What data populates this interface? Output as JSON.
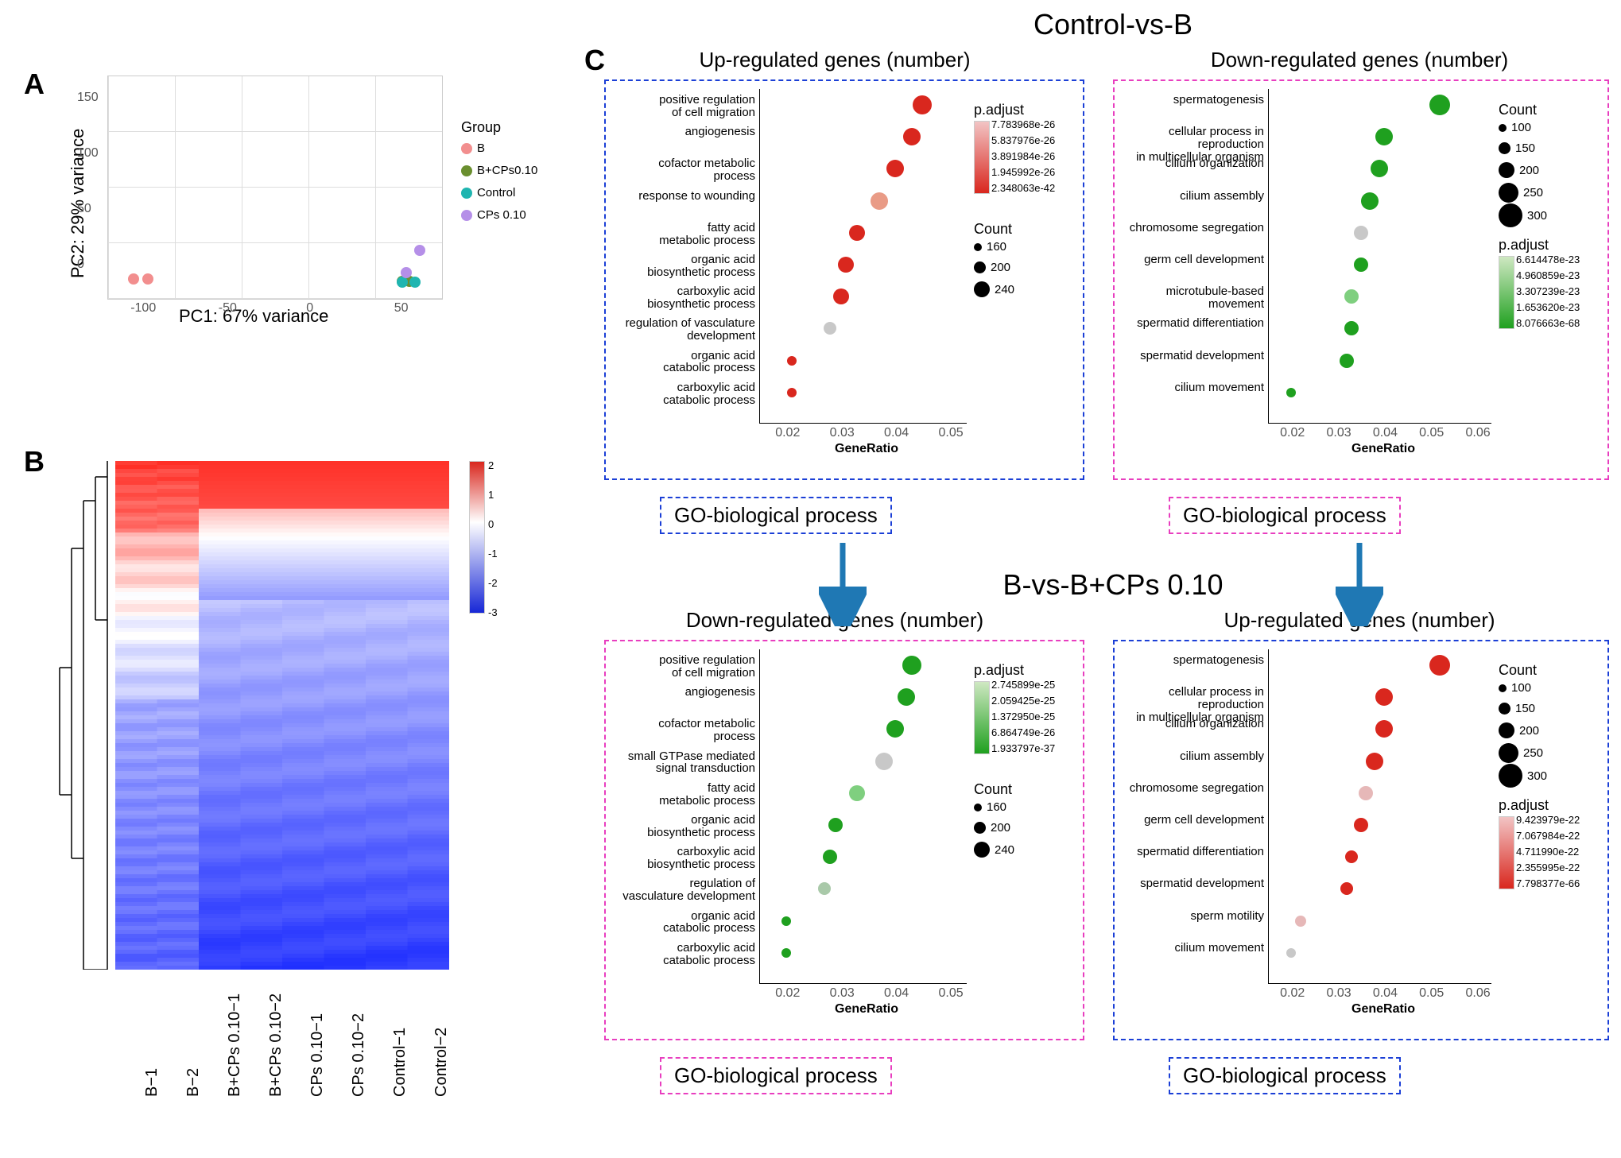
{
  "labels": {
    "A": "A",
    "B": "B",
    "C": "C"
  },
  "titles": {
    "top": "Control-vs-B",
    "mid": "B-vs-B+CPs 0.10",
    "up": "Up-regulated genes (number)",
    "down": "Down-regulated genes (number)"
  },
  "go_label": "GO-biological process",
  "colors": {
    "blue_dash": "#1b3fd6",
    "pink_dash": "#e83ebf",
    "arrow": "#1f78b4",
    "legend": {
      "B": "#f28e8e",
      "B+CPs0.10": "#6a8f2f",
      "Control": "#1fb5b0",
      "CPs 0.10": "#b58fe8"
    }
  },
  "panelA": {
    "xlabel": "PC1: 67% variance",
    "ylabel": "PC2: 29% variance",
    "xlim": [
      -120,
      70
    ],
    "xticks": [
      -100,
      -50,
      0,
      50
    ],
    "ylim": [
      -30,
      170
    ],
    "yticks": [
      0,
      50,
      100,
      150
    ],
    "legend_title": "Group",
    "groups": [
      {
        "name": "B",
        "color": "#f28e8e"
      },
      {
        "name": "B+CPs0.10",
        "color": "#6a8f2f"
      },
      {
        "name": "Control",
        "color": "#1fb5b0"
      },
      {
        "name": "CPs 0.10",
        "color": "#b58fe8"
      }
    ],
    "points": [
      {
        "x": -105,
        "y": -13,
        "c": "#f28e8e"
      },
      {
        "x": -97,
        "y": -13,
        "c": "#f28e8e"
      },
      {
        "x": 48,
        "y": -15,
        "c": "#6a8f2f"
      },
      {
        "x": 52,
        "y": -15,
        "c": "#6a8f2f"
      },
      {
        "x": 48,
        "y": -16,
        "c": "#1fb5b0"
      },
      {
        "x": 55,
        "y": -16,
        "c": "#1fb5b0"
      },
      {
        "x": 50,
        "y": -7,
        "c": "#b58fe8"
      },
      {
        "x": 58,
        "y": 13,
        "c": "#b58fe8"
      }
    ]
  },
  "panelB": {
    "scale_ticks": [
      "2",
      "1",
      "0",
      "-1",
      "-2",
      "-3"
    ],
    "scale_colors": {
      "top": "#d9271e",
      "mid": "#ffffff",
      "bot": "#1727d6"
    },
    "cols": [
      "B−1",
      "B−2",
      "B+CPs 0.10−1",
      "B+CPs 0.10−2",
      "CPs 0.10−1",
      "CPs 0.10−2",
      "Control−1",
      "Control−2"
    ],
    "cells": "see JS render"
  },
  "dot_common": {
    "xlabel": "GeneRatio",
    "xticks": [
      "0.02",
      "0.03",
      "0.04",
      "0.05"
    ],
    "xticks_alt": [
      "0.02",
      "0.03",
      "0.04",
      "0.05",
      "0.06"
    ]
  },
  "plotC1": {
    "box_color": "#1b3fd6",
    "counts": [
      160,
      200,
      240
    ],
    "padj_labels": [
      "7.783968e-26",
      "5.837976e-26",
      "3.891984e-26",
      "1.945992e-26",
      "2.348063e-42"
    ],
    "grad": [
      "#f2c4c4",
      "#d9271e"
    ],
    "terms": [
      {
        "t": "positive regulation\nof cell migration",
        "x": 0.045,
        "s": 24,
        "c": "#d9271e"
      },
      {
        "t": "angiogenesis",
        "x": 0.043,
        "s": 22,
        "c": "#d9271e"
      },
      {
        "t": "cofactor metabolic\nprocess",
        "x": 0.04,
        "s": 22,
        "c": "#d9271e"
      },
      {
        "t": "response to wounding",
        "x": 0.037,
        "s": 22,
        "c": "#e99b86"
      },
      {
        "t": "fatty acid\nmetabolic process",
        "x": 0.033,
        "s": 20,
        "c": "#d9271e"
      },
      {
        "t": "organic acid\nbiosynthetic process",
        "x": 0.031,
        "s": 20,
        "c": "#d9271e"
      },
      {
        "t": "carboxylic acid\nbiosynthetic process",
        "x": 0.03,
        "s": 20,
        "c": "#d9271e"
      },
      {
        "t": "regulation of vasculature\ndevelopment",
        "x": 0.028,
        "s": 16,
        "c": "#c8c8c8"
      },
      {
        "t": "organic acid\ncatabolic process",
        "x": 0.021,
        "s": 12,
        "c": "#d9271e"
      },
      {
        "t": "carboxylic acid\ncatabolic process",
        "x": 0.021,
        "s": 12,
        "c": "#d9271e"
      }
    ]
  },
  "plotC2": {
    "box_color": "#e83ebf",
    "counts": [
      100,
      150,
      200,
      250,
      300
    ],
    "padj_labels": [
      "6.614478e-23",
      "4.960859e-23",
      "3.307239e-23",
      "1.653620e-23",
      "8.076663e-68"
    ],
    "grad": [
      "#cfe8c2",
      "#1fa01f"
    ],
    "terms": [
      {
        "t": "spermatogenesis",
        "x": 0.052,
        "s": 26,
        "c": "#1fa01f"
      },
      {
        "t": "cellular process in reproduction\nin multicellular organism",
        "x": 0.04,
        "s": 22,
        "c": "#1fa01f"
      },
      {
        "t": "cilium organization",
        "x": 0.039,
        "s": 22,
        "c": "#1fa01f"
      },
      {
        "t": "cilium assembly",
        "x": 0.037,
        "s": 22,
        "c": "#1fa01f"
      },
      {
        "t": "chromosome segregation",
        "x": 0.035,
        "s": 18,
        "c": "#c8c8c8"
      },
      {
        "t": "germ cell development",
        "x": 0.035,
        "s": 18,
        "c": "#1fa01f"
      },
      {
        "t": "microtubule-based movement",
        "x": 0.033,
        "s": 18,
        "c": "#7fcf7f"
      },
      {
        "t": "spermatid differentiation",
        "x": 0.033,
        "s": 18,
        "c": "#1fa01f"
      },
      {
        "t": "spermatid development",
        "x": 0.032,
        "s": 18,
        "c": "#1fa01f"
      },
      {
        "t": "cilium movement",
        "x": 0.02,
        "s": 12,
        "c": "#1fa01f"
      }
    ]
  },
  "plotC3": {
    "box_color": "#e83ebf",
    "counts": [
      160,
      200,
      240
    ],
    "padj_labels": [
      "2.745899e-25",
      "2.059425e-25",
      "1.372950e-25",
      "6.864749e-26",
      "1.933797e-37"
    ],
    "grad": [
      "#cfe8c2",
      "#1fa01f"
    ],
    "terms": [
      {
        "t": "positive regulation\nof cell migration",
        "x": 0.043,
        "s": 24,
        "c": "#1fa01f"
      },
      {
        "t": "angiogenesis",
        "x": 0.042,
        "s": 22,
        "c": "#1fa01f"
      },
      {
        "t": "cofactor metabolic\nprocess",
        "x": 0.04,
        "s": 22,
        "c": "#1fa01f"
      },
      {
        "t": "small GTPase mediated\nsignal transduction",
        "x": 0.038,
        "s": 22,
        "c": "#c8c8c8"
      },
      {
        "t": "fatty acid\nmetabolic process",
        "x": 0.033,
        "s": 20,
        "c": "#7fcf7f"
      },
      {
        "t": "organic acid\nbiosynthetic process",
        "x": 0.029,
        "s": 18,
        "c": "#1fa01f"
      },
      {
        "t": "carboxylic acid\nbiosynthetic process",
        "x": 0.028,
        "s": 18,
        "c": "#1fa01f"
      },
      {
        "t": "regulation of\nvasculature development",
        "x": 0.027,
        "s": 16,
        "c": "#a9c9a9"
      },
      {
        "t": "organic acid\ncatabolic process",
        "x": 0.02,
        "s": 12,
        "c": "#1fa01f"
      },
      {
        "t": "carboxylic acid\ncatabolic process",
        "x": 0.02,
        "s": 12,
        "c": "#1fa01f"
      }
    ]
  },
  "plotC4": {
    "box_color": "#1b3fd6",
    "counts": [
      100,
      150,
      200,
      250,
      300
    ],
    "padj_labels": [
      "9.423979e-22",
      "7.067984e-22",
      "4.711990e-22",
      "2.355995e-22",
      "7.798377e-66"
    ],
    "grad": [
      "#f2c4c4",
      "#d9271e"
    ],
    "terms": [
      {
        "t": "spermatogenesis",
        "x": 0.052,
        "s": 26,
        "c": "#d9271e"
      },
      {
        "t": "cellular process in reproduction\nin multicellular organism",
        "x": 0.04,
        "s": 22,
        "c": "#d9271e"
      },
      {
        "t": "cilium organization",
        "x": 0.04,
        "s": 22,
        "c": "#d9271e"
      },
      {
        "t": "cilium assembly",
        "x": 0.038,
        "s": 22,
        "c": "#d9271e"
      },
      {
        "t": "chromosome segregation",
        "x": 0.036,
        "s": 18,
        "c": "#e6b8b8"
      },
      {
        "t": "germ cell development",
        "x": 0.035,
        "s": 18,
        "c": "#d9271e"
      },
      {
        "t": "spermatid differentiation",
        "x": 0.033,
        "s": 16,
        "c": "#d9271e"
      },
      {
        "t": "spermatid development",
        "x": 0.032,
        "s": 16,
        "c": "#d9271e"
      },
      {
        "t": "sperm motility",
        "x": 0.022,
        "s": 14,
        "c": "#e6b8b8"
      },
      {
        "t": "cilium movement",
        "x": 0.02,
        "s": 12,
        "c": "#c8c8c8"
      }
    ]
  }
}
